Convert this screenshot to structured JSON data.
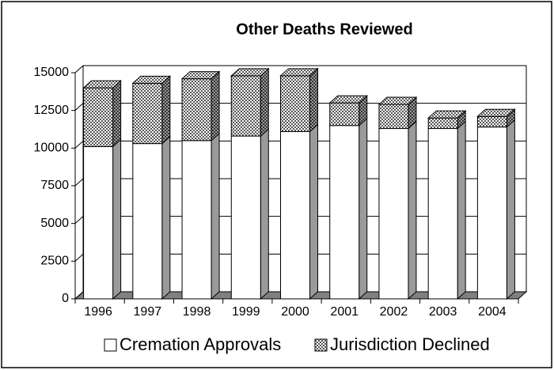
{
  "chart_data": {
    "type": "bar3d_stacked",
    "title": "Other Deaths Reviewed",
    "categories": [
      "1996",
      "1997",
      "1998",
      "1999",
      "2000",
      "2001",
      "2002",
      "2003",
      "2004"
    ],
    "series": [
      {
        "name": "Cremation Approvals",
        "color": "#ffffff",
        "values": [
          10100,
          10300,
          10500,
          10800,
          11100,
          11500,
          11300,
          11300,
          11400
        ]
      },
      {
        "name": "Jurisdiction Declined",
        "color": "#555555",
        "values": [
          3900,
          4000,
          4100,
          4000,
          3700,
          1500,
          1600,
          700,
          700
        ]
      }
    ],
    "ylim": [
      0,
      15000
    ],
    "yticks": [
      0,
      2500,
      5000,
      7500,
      10000,
      12500,
      15000
    ],
    "grid": true,
    "legend": "bottom"
  }
}
